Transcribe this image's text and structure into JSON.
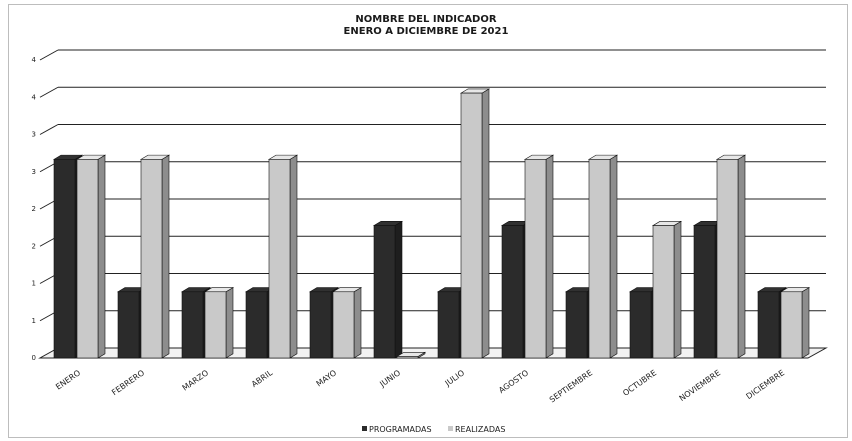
{
  "chart_data": {
    "type": "bar",
    "title": "NOMBRE DEL INDICADOR",
    "subtitle": "ENERO A DICIEMBRE DE 2021",
    "categories": [
      "ENERO",
      "FEBRERO",
      "MARZO",
      "ABRIL",
      "MAYO",
      "JUNIO",
      "JULIO",
      "AGOSTO",
      "SEPTIEMBRE",
      "OCTUBRE",
      "NOVIEMBRE",
      "DICIEMBRE"
    ],
    "series": [
      {
        "name": "PROGRAMADAS",
        "color": "#2b2b2b",
        "values": [
          3,
          1,
          1,
          1,
          1,
          2,
          1,
          2,
          1,
          1,
          2,
          1
        ]
      },
      {
        "name": "REALIZADAS",
        "color": "#c9c9c9",
        "values": [
          3,
          3,
          1,
          3,
          1,
          0,
          4,
          3,
          3,
          2,
          3,
          1
        ]
      }
    ],
    "ytick_labels": [
      "0",
      "1",
      "1",
      "2",
      "2",
      "3",
      "3",
      "4",
      "4"
    ],
    "ylim": [
      0,
      4.5
    ],
    "grid": true,
    "legend": "bottom"
  }
}
